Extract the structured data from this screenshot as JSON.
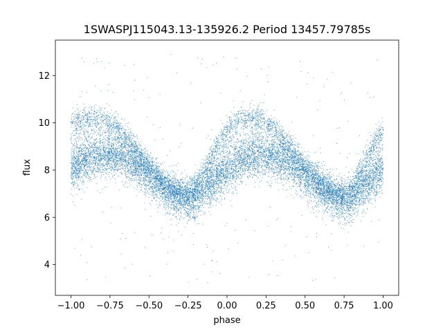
{
  "chart_data": {
    "type": "scatter",
    "title": "1SWASPJ115043.13-135926.2 Period 13457.79785s",
    "xlabel": "phase",
    "ylabel": "flux",
    "xlim": [
      -1.1,
      1.1
    ],
    "ylim": [
      2.7,
      13.5
    ],
    "xticks": [
      -1.0,
      -0.75,
      -0.5,
      -0.25,
      0.0,
      0.25,
      0.5,
      0.75,
      1.0
    ],
    "xtick_labels": [
      "−1.00",
      "−0.75",
      "−0.50",
      "−0.25",
      "0.00",
      "0.25",
      "0.50",
      "0.75",
      "1.00"
    ],
    "yticks": [
      4,
      6,
      8,
      10,
      12
    ],
    "ytick_labels": [
      "4",
      "6",
      "8",
      "10",
      "12"
    ],
    "grid": false,
    "legend": "none",
    "marker_color": "#1f77b4",
    "series": [
      {
        "main_branch": {
          "phase": [
            -1.0,
            -0.9,
            -0.8,
            -0.7,
            -0.6,
            -0.5,
            -0.4,
            -0.3,
            -0.25,
            -0.2,
            -0.1,
            0.0,
            0.1,
            0.2,
            0.3,
            0.4,
            0.5,
            0.6,
            0.7,
            0.75,
            0.8,
            0.9,
            1.0
          ],
          "flux": [
            8.0,
            8.4,
            8.6,
            8.6,
            8.3,
            7.7,
            7.2,
            6.8,
            6.7,
            6.8,
            7.4,
            8.0,
            8.4,
            8.6,
            8.6,
            8.3,
            7.7,
            7.2,
            6.8,
            6.7,
            6.8,
            7.4,
            8.0
          ],
          "spread": 0.45
        },
        "upper_branch": {
          "phase": [
            -1.0,
            -0.9,
            -0.8,
            -0.7,
            -0.6,
            -0.5,
            -0.4,
            -0.3,
            -0.25,
            -0.2,
            -0.1,
            0.0,
            0.1,
            0.2,
            0.3,
            0.4,
            0.5,
            0.6,
            0.7,
            0.75,
            0.8,
            0.9,
            1.0
          ],
          "flux": [
            10.0,
            10.2,
            10.2,
            9.8,
            9.0,
            8.2,
            7.4,
            7.0,
            7.0,
            7.3,
            8.6,
            9.8,
            10.2,
            10.2,
            9.8,
            9.0,
            8.2,
            7.4,
            7.0,
            7.0,
            7.3,
            8.6,
            9.8
          ],
          "spread": 0.25
        },
        "outlier_range": [
          3.2,
          12.9
        ]
      }
    ]
  }
}
